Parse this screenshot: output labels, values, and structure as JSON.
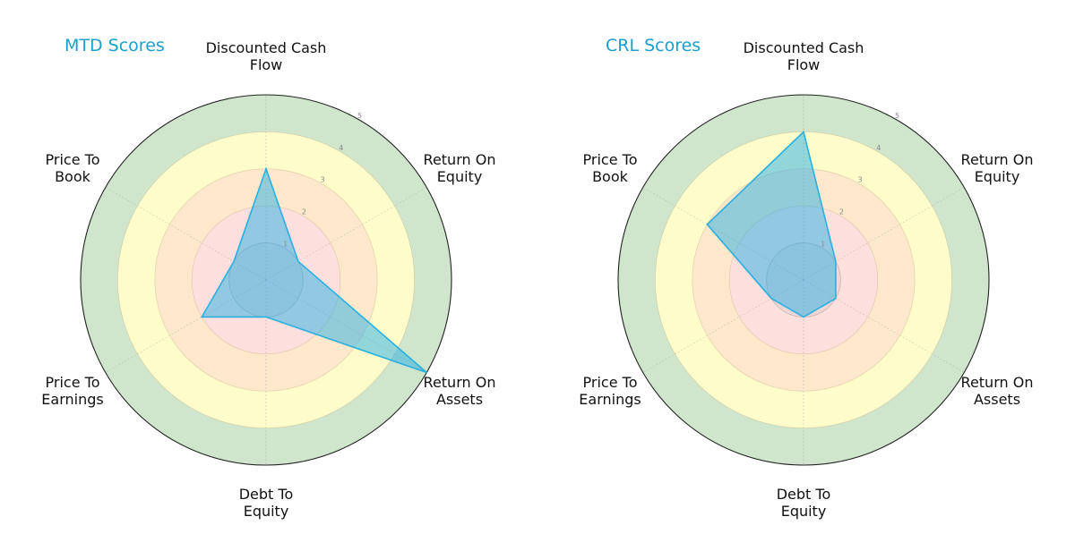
{
  "chart_data": [
    {
      "type": "radar",
      "title": "MTD Scores",
      "categories": [
        "Discounted Cash Flow",
        "Return On Equity",
        "Return On Assets",
        "Debt To Equity",
        "Price To Earnings",
        "Price To Book"
      ],
      "values": [
        3,
        1,
        5,
        1,
        2,
        1
      ],
      "rlim": [
        0,
        5
      ],
      "rticks": [
        1,
        2,
        3,
        4,
        5
      ]
    },
    {
      "type": "radar",
      "title": "CRL Scores",
      "categories": [
        "Discounted Cash Flow",
        "Return On Equity",
        "Return On Assets",
        "Debt To Equity",
        "Price To Earnings",
        "Price To Book"
      ],
      "values": [
        4,
        1,
        1,
        1,
        1,
        3
      ],
      "rlim": [
        0,
        5
      ],
      "rticks": [
        1,
        2,
        3,
        4,
        5
      ]
    }
  ],
  "charts": [
    {
      "title": "MTD Scores",
      "labels": {
        "dcf": "Discounted Cash\nFlow",
        "roe": "Return On\nEquity",
        "roa": "Return On\nAssets",
        "de": "Debt To\nEquity",
        "pe": "Price To\nEarnings",
        "pb": "Price To\nBook"
      }
    },
    {
      "title": "CRL Scores",
      "labels": {
        "dcf": "Discounted Cash\nFlow",
        "roe": "Return On\nEquity",
        "roa": "Return On\nAssets",
        "de": "Debt To\nEquity",
        "pe": "Price To\nEarnings",
        "pb": "Price To\nBook"
      }
    }
  ],
  "colors": {
    "title": "#1a9fcc",
    "band_1": "#fde0dd",
    "band_2": "#fde0dd",
    "band_3": "#fde8cc",
    "band_4": "#fffccc",
    "band_5": "#cfe5cc",
    "polygon_fill": "rgba(40,175,230,0.5)",
    "polygon_edge": "#29b0e0",
    "outer_ring": "#222222"
  }
}
